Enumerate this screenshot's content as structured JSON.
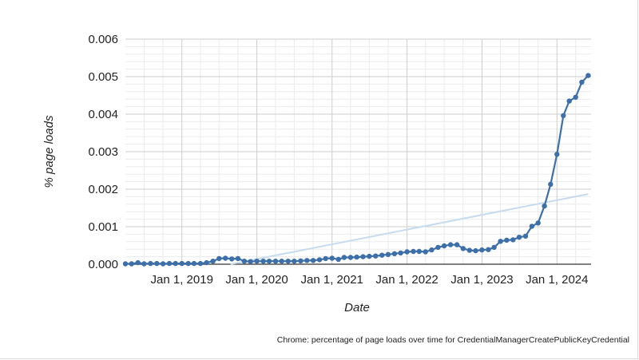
{
  "caption": "Chrome: percentage of page loads over time for CredentialManagerCreatePublicKeyCredential",
  "chart_data": {
    "type": "line",
    "title": "",
    "xlabel": "Date",
    "ylabel": "% page loads",
    "ylim": [
      0,
      0.006
    ],
    "yticks": [
      "0.000",
      "0.001",
      "0.002",
      "0.003",
      "0.004",
      "0.005",
      "0.006"
    ],
    "xlim": [
      "2018-04-01",
      "2024-06-15"
    ],
    "xticks": [
      {
        "date": "2019-01-01",
        "label": "Jan 1, 2019"
      },
      {
        "date": "2020-01-01",
        "label": "Jan 1, 2020"
      },
      {
        "date": "2021-01-01",
        "label": "Jan 1, 2021"
      },
      {
        "date": "2022-01-01",
        "label": "Jan 1, 2022"
      },
      {
        "date": "2023-01-01",
        "label": "Jan 1, 2023"
      },
      {
        "date": "2024-01-01",
        "label": "Jan 1, 2024"
      }
    ],
    "grid": true,
    "legend": "none",
    "colors": {
      "series": "#3d6fa8",
      "trend": "#c6dcee",
      "grid_major": "#cccccc",
      "grid_minor": "#ebebeb",
      "axis": "#333333"
    },
    "series": [
      {
        "x": [
          "2018-04-01",
          "2018-05-01",
          "2018-06-01",
          "2018-07-01",
          "2018-08-01",
          "2018-09-01",
          "2018-10-01",
          "2018-11-01",
          "2018-12-01",
          "2019-01-01",
          "2019-02-01",
          "2019-03-01",
          "2019-04-01",
          "2019-05-01",
          "2019-06-01",
          "2019-07-01",
          "2019-08-01",
          "2019-09-01",
          "2019-10-01",
          "2019-11-01",
          "2019-12-01",
          "2020-01-01",
          "2020-02-01",
          "2020-03-01",
          "2020-04-01",
          "2020-05-01",
          "2020-06-01",
          "2020-07-01",
          "2020-08-01",
          "2020-09-01",
          "2020-10-01",
          "2020-11-01",
          "2020-12-01",
          "2021-01-01",
          "2021-02-01",
          "2021-03-01",
          "2021-04-01",
          "2021-05-01",
          "2021-06-01",
          "2021-07-01",
          "2021-08-01",
          "2021-09-01",
          "2021-10-01",
          "2021-11-01",
          "2021-12-01",
          "2022-01-01",
          "2022-02-01",
          "2022-03-01",
          "2022-04-01",
          "2022-05-01",
          "2022-06-01",
          "2022-07-01",
          "2022-08-01",
          "2022-09-01",
          "2022-10-01",
          "2022-11-01",
          "2022-12-01",
          "2023-01-01",
          "2023-02-01",
          "2023-03-01",
          "2023-04-01",
          "2023-05-01",
          "2023-06-01",
          "2023-07-01",
          "2023-08-01",
          "2023-09-01",
          "2023-10-01",
          "2023-11-01",
          "2023-12-01",
          "2024-01-01",
          "2024-02-01",
          "2024-03-01",
          "2024-04-01",
          "2024-05-01",
          "2024-06-01"
        ],
        "y": [
          1e-05,
          1e-05,
          4e-05,
          1e-05,
          2e-05,
          2e-05,
          1e-05,
          2e-05,
          2e-05,
          2e-05,
          2e-05,
          2e-05,
          2e-05,
          4e-05,
          8e-05,
          0.00015,
          0.00016,
          0.00014,
          0.00015,
          8e-05,
          7e-05,
          8e-05,
          8e-05,
          8e-05,
          8e-05,
          8e-05,
          8e-05,
          8e-05,
          9e-05,
          0.0001,
          0.0001,
          0.00012,
          0.00015,
          0.00016,
          0.00013,
          0.00018,
          0.00018,
          0.00019,
          0.0002,
          0.00021,
          0.00022,
          0.00024,
          0.00026,
          0.00028,
          0.0003,
          0.00033,
          0.00034,
          0.00034,
          0.00033,
          0.00038,
          0.00045,
          0.00049,
          0.00052,
          0.00052,
          0.00042,
          0.00037,
          0.00036,
          0.00038,
          0.00039,
          0.00045,
          0.00061,
          0.00064,
          0.00065,
          0.00072,
          0.00075,
          0.00101,
          0.0011,
          0.00155,
          0.00213,
          0.00293,
          0.00396,
          0.00435,
          0.00445,
          0.00485,
          0.00503
        ]
      }
    ],
    "trendline": {
      "x": [
        "2018-04-01",
        "2024-06-01"
      ],
      "y": [
        -0.00055,
        0.00187
      ]
    }
  }
}
